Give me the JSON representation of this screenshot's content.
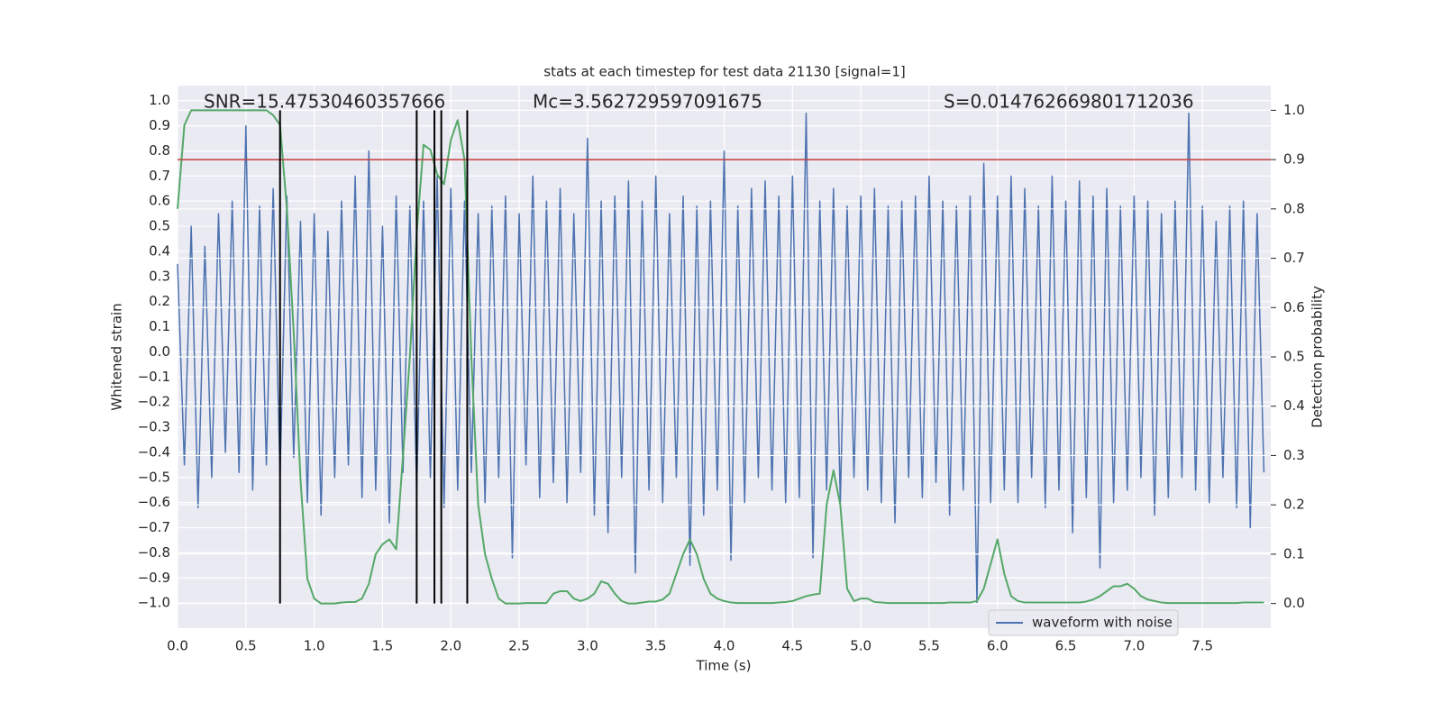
{
  "chart_data": {
    "type": "line",
    "title": "stats at each timestep for test data 21130 [signal=1]",
    "annotations": [
      "SNR=15.47530460357666",
      "Mc=3.562729597091675",
      "S=0.014762669801712036"
    ],
    "xlabel": "Time (s)",
    "ylabel": "Whitened strain",
    "y2label": "Detection probability",
    "x": [
      0.0,
      0.05,
      0.1,
      0.15,
      0.2,
      0.25,
      0.3,
      0.35,
      0.4,
      0.45,
      0.5,
      0.55,
      0.6,
      0.65,
      0.7,
      0.75,
      0.8,
      0.85,
      0.9,
      0.95,
      1.0,
      1.05,
      1.1,
      1.15,
      1.2,
      1.25,
      1.3,
      1.35,
      1.4,
      1.45,
      1.5,
      1.55,
      1.6,
      1.65,
      1.7,
      1.75,
      1.8,
      1.85,
      1.9,
      1.95,
      2.0,
      2.05,
      2.1,
      2.15,
      2.2,
      2.25,
      2.3,
      2.35,
      2.4,
      2.45,
      2.5,
      2.55,
      2.6,
      2.65,
      2.7,
      2.75,
      2.8,
      2.85,
      2.9,
      2.95,
      3.0,
      3.05,
      3.1,
      3.15,
      3.2,
      3.25,
      3.3,
      3.35,
      3.4,
      3.45,
      3.5,
      3.55,
      3.6,
      3.65,
      3.7,
      3.75,
      3.8,
      3.85,
      3.9,
      3.95,
      4.0,
      4.05,
      4.1,
      4.15,
      4.2,
      4.25,
      4.3,
      4.35,
      4.4,
      4.45,
      4.5,
      4.55,
      4.6,
      4.65,
      4.7,
      4.75,
      4.8,
      4.85,
      4.9,
      4.95,
      5.0,
      5.05,
      5.1,
      5.15,
      5.2,
      5.25,
      5.3,
      5.35,
      5.4,
      5.45,
      5.5,
      5.55,
      5.6,
      5.65,
      5.7,
      5.75,
      5.8,
      5.85,
      5.9,
      5.95,
      6.0,
      6.05,
      6.1,
      6.15,
      6.2,
      6.25,
      6.3,
      6.35,
      6.4,
      6.45,
      6.5,
      6.55,
      6.6,
      6.65,
      6.7,
      6.75,
      6.8,
      6.85,
      6.9,
      6.95,
      7.0,
      7.05,
      7.1,
      7.15,
      7.2,
      7.25,
      7.3,
      7.35,
      7.4,
      7.45,
      7.5,
      7.55,
      7.6,
      7.65,
      7.7,
      7.75,
      7.8,
      7.85,
      7.9,
      7.95
    ],
    "series": [
      {
        "name": "waveform with noise",
        "color": "#4c72b0",
        "values": [
          0.35,
          -0.45,
          0.5,
          -0.62,
          0.42,
          -0.5,
          0.55,
          -0.4,
          0.6,
          -0.48,
          0.9,
          -0.55,
          0.58,
          -0.45,
          0.65,
          -0.5,
          0.62,
          -0.42,
          0.52,
          -0.6,
          0.55,
          -0.65,
          0.48,
          -0.5,
          0.6,
          -0.45,
          0.7,
          -0.58,
          0.8,
          -0.55,
          0.5,
          -0.68,
          0.62,
          -0.48,
          0.58,
          -0.55,
          0.6,
          -0.5,
          0.7,
          -0.62,
          0.65,
          -0.55,
          0.6,
          -0.48,
          0.55,
          -0.6,
          0.58,
          -0.5,
          0.62,
          -0.82,
          0.55,
          -0.45,
          0.7,
          -0.58,
          0.6,
          -0.52,
          0.65,
          -0.6,
          0.55,
          -0.48,
          0.85,
          -0.65,
          0.6,
          -0.72,
          0.62,
          -0.5,
          0.68,
          -0.88,
          0.6,
          -0.55,
          0.7,
          -0.6,
          0.55,
          -0.5,
          0.62,
          -0.85,
          0.58,
          -0.65,
          0.6,
          -0.55,
          0.8,
          -0.83,
          0.58,
          -0.6,
          0.65,
          -0.5,
          0.68,
          -0.55,
          0.62,
          -0.6,
          0.7,
          -0.58,
          0.95,
          -0.82,
          0.6,
          -0.55,
          0.65,
          -0.6,
          0.58,
          -0.5,
          0.62,
          -0.55,
          0.65,
          -0.6,
          0.58,
          -0.68,
          0.6,
          -0.5,
          0.62,
          -0.58,
          0.7,
          -0.52,
          0.6,
          -0.65,
          0.58,
          -0.55,
          0.62,
          -1.0,
          0.75,
          -0.6,
          0.62,
          -0.55,
          0.7,
          -0.6,
          0.65,
          -0.5,
          0.58,
          -0.62,
          0.7,
          -0.55,
          0.6,
          -0.72,
          0.68,
          -0.58,
          0.62,
          -0.86,
          0.65,
          -0.6,
          0.58,
          -0.55,
          0.62,
          -0.5,
          0.6,
          -0.65,
          0.55,
          -0.58,
          0.6,
          -0.5,
          0.95,
          -0.55,
          0.58,
          -0.6,
          0.52,
          -0.5,
          0.58,
          -0.62,
          0.6,
          -0.7,
          0.55,
          -0.48
        ]
      },
      {
        "color": "#55a868",
        "axis": "y2",
        "values": [
          0.8,
          0.97,
          1.0,
          1.0,
          1.0,
          1.0,
          1.0,
          1.0,
          1.0,
          1.0,
          1.0,
          1.0,
          1.0,
          1.0,
          0.99,
          0.97,
          0.8,
          0.55,
          0.25,
          0.05,
          0.01,
          0.0,
          0.0,
          0.0,
          0.002,
          0.003,
          0.003,
          0.01,
          0.04,
          0.1,
          0.12,
          0.13,
          0.11,
          0.3,
          0.5,
          0.75,
          0.93,
          0.92,
          0.87,
          0.85,
          0.94,
          0.98,
          0.9,
          0.5,
          0.2,
          0.1,
          0.05,
          0.01,
          0.0,
          0.0,
          0.0,
          0.001,
          0.001,
          0.001,
          0.001,
          0.02,
          0.025,
          0.025,
          0.01,
          0.005,
          0.01,
          0.02,
          0.045,
          0.04,
          0.02,
          0.005,
          0.0,
          0.0,
          0.002,
          0.004,
          0.004,
          0.008,
          0.02,
          0.06,
          0.1,
          0.13,
          0.1,
          0.05,
          0.02,
          0.01,
          0.005,
          0.002,
          0.001,
          0.001,
          0.001,
          0.001,
          0.001,
          0.001,
          0.002,
          0.003,
          0.005,
          0.01,
          0.015,
          0.018,
          0.02,
          0.2,
          0.27,
          0.2,
          0.03,
          0.005,
          0.01,
          0.01,
          0.003,
          0.002,
          0.001,
          0.001,
          0.001,
          0.001,
          0.001,
          0.001,
          0.001,
          0.001,
          0.001,
          0.002,
          0.002,
          0.002,
          0.002,
          0.005,
          0.03,
          0.08,
          0.13,
          0.06,
          0.015,
          0.005,
          0.002,
          0.002,
          0.002,
          0.002,
          0.002,
          0.002,
          0.002,
          0.002,
          0.002,
          0.004,
          0.008,
          0.015,
          0.025,
          0.035,
          0.035,
          0.04,
          0.03,
          0.015,
          0.008,
          0.005,
          0.002,
          0.001,
          0.001,
          0.001,
          0.001,
          0.001,
          0.001,
          0.001,
          0.001,
          0.001,
          0.001,
          0.001,
          0.002,
          0.002,
          0.002,
          0.002
        ]
      }
    ],
    "threshold": {
      "value": 0.9,
      "axis": "y2",
      "color": "#c03d3e"
    },
    "vlines": {
      "x": [
        0.75,
        1.75,
        1.88,
        1.93,
        2.12
      ],
      "color": "#000000"
    },
    "xlim": [
      0,
      8.0
    ],
    "xticks": [
      {
        "value": 0,
        "label": "0.0"
      },
      {
        "value": 0.5,
        "label": "0.5"
      },
      {
        "value": 1,
        "label": "1.0"
      },
      {
        "value": 1.5,
        "label": "1.5"
      },
      {
        "value": 2,
        "label": "2.0"
      },
      {
        "value": 2.5,
        "label": "2.5"
      },
      {
        "value": 3,
        "label": "3.0"
      },
      {
        "value": 3.5,
        "label": "3.5"
      },
      {
        "value": 4,
        "label": "4.0"
      },
      {
        "value": 4.5,
        "label": "4.5"
      },
      {
        "value": 5,
        "label": "5.0"
      },
      {
        "value": 5.5,
        "label": "5.5"
      },
      {
        "value": 6,
        "label": "6.0"
      },
      {
        "value": 6.5,
        "label": "6.5"
      },
      {
        "value": 7,
        "label": "7.0"
      },
      {
        "value": 7.5,
        "label": "7.5"
      }
    ],
    "ylim": [
      -1.1,
      1.06
    ],
    "yticks": [
      {
        "value": -1,
        "label": "−1.0"
      },
      {
        "value": -0.9,
        "label": "−0.9"
      },
      {
        "value": -0.8,
        "label": "−0.8"
      },
      {
        "value": -0.7,
        "label": "−0.7"
      },
      {
        "value": -0.6,
        "label": "−0.6"
      },
      {
        "value": -0.5,
        "label": "−0.5"
      },
      {
        "value": -0.4,
        "label": "−0.4"
      },
      {
        "value": -0.3,
        "label": "−0.3"
      },
      {
        "value": -0.2,
        "label": "−0.2"
      },
      {
        "value": -0.1,
        "label": "−0.1"
      },
      {
        "value": 0,
        "label": "0.0"
      },
      {
        "value": 0.1,
        "label": "0.1"
      },
      {
        "value": 0.2,
        "label": "0.2"
      },
      {
        "value": 0.3,
        "label": "0.3"
      },
      {
        "value": 0.4,
        "label": "0.4"
      },
      {
        "value": 0.5,
        "label": "0.5"
      },
      {
        "value": 0.6,
        "label": "0.6"
      },
      {
        "value": 0.7,
        "label": "0.7"
      },
      {
        "value": 0.8,
        "label": "0.8"
      },
      {
        "value": 0.9,
        "label": "0.9"
      },
      {
        "value": 1,
        "label": "1.0"
      }
    ],
    "y2lim": [
      -0.05,
      1.05
    ],
    "y2ticks": [
      {
        "value": 0,
        "label": "0.0"
      },
      {
        "value": 0.1,
        "label": "0.1"
      },
      {
        "value": 0.2,
        "label": "0.2"
      },
      {
        "value": 0.3,
        "label": "0.3"
      },
      {
        "value": 0.4,
        "label": "0.4"
      },
      {
        "value": 0.5,
        "label": "0.5"
      },
      {
        "value": 0.6,
        "label": "0.6"
      },
      {
        "value": 0.7,
        "label": "0.7"
      },
      {
        "value": 0.8,
        "label": "0.8"
      },
      {
        "value": 0.9,
        "label": "0.9"
      },
      {
        "value": 1,
        "label": "1.0"
      }
    ],
    "grid": true,
    "legend": "lower right"
  }
}
